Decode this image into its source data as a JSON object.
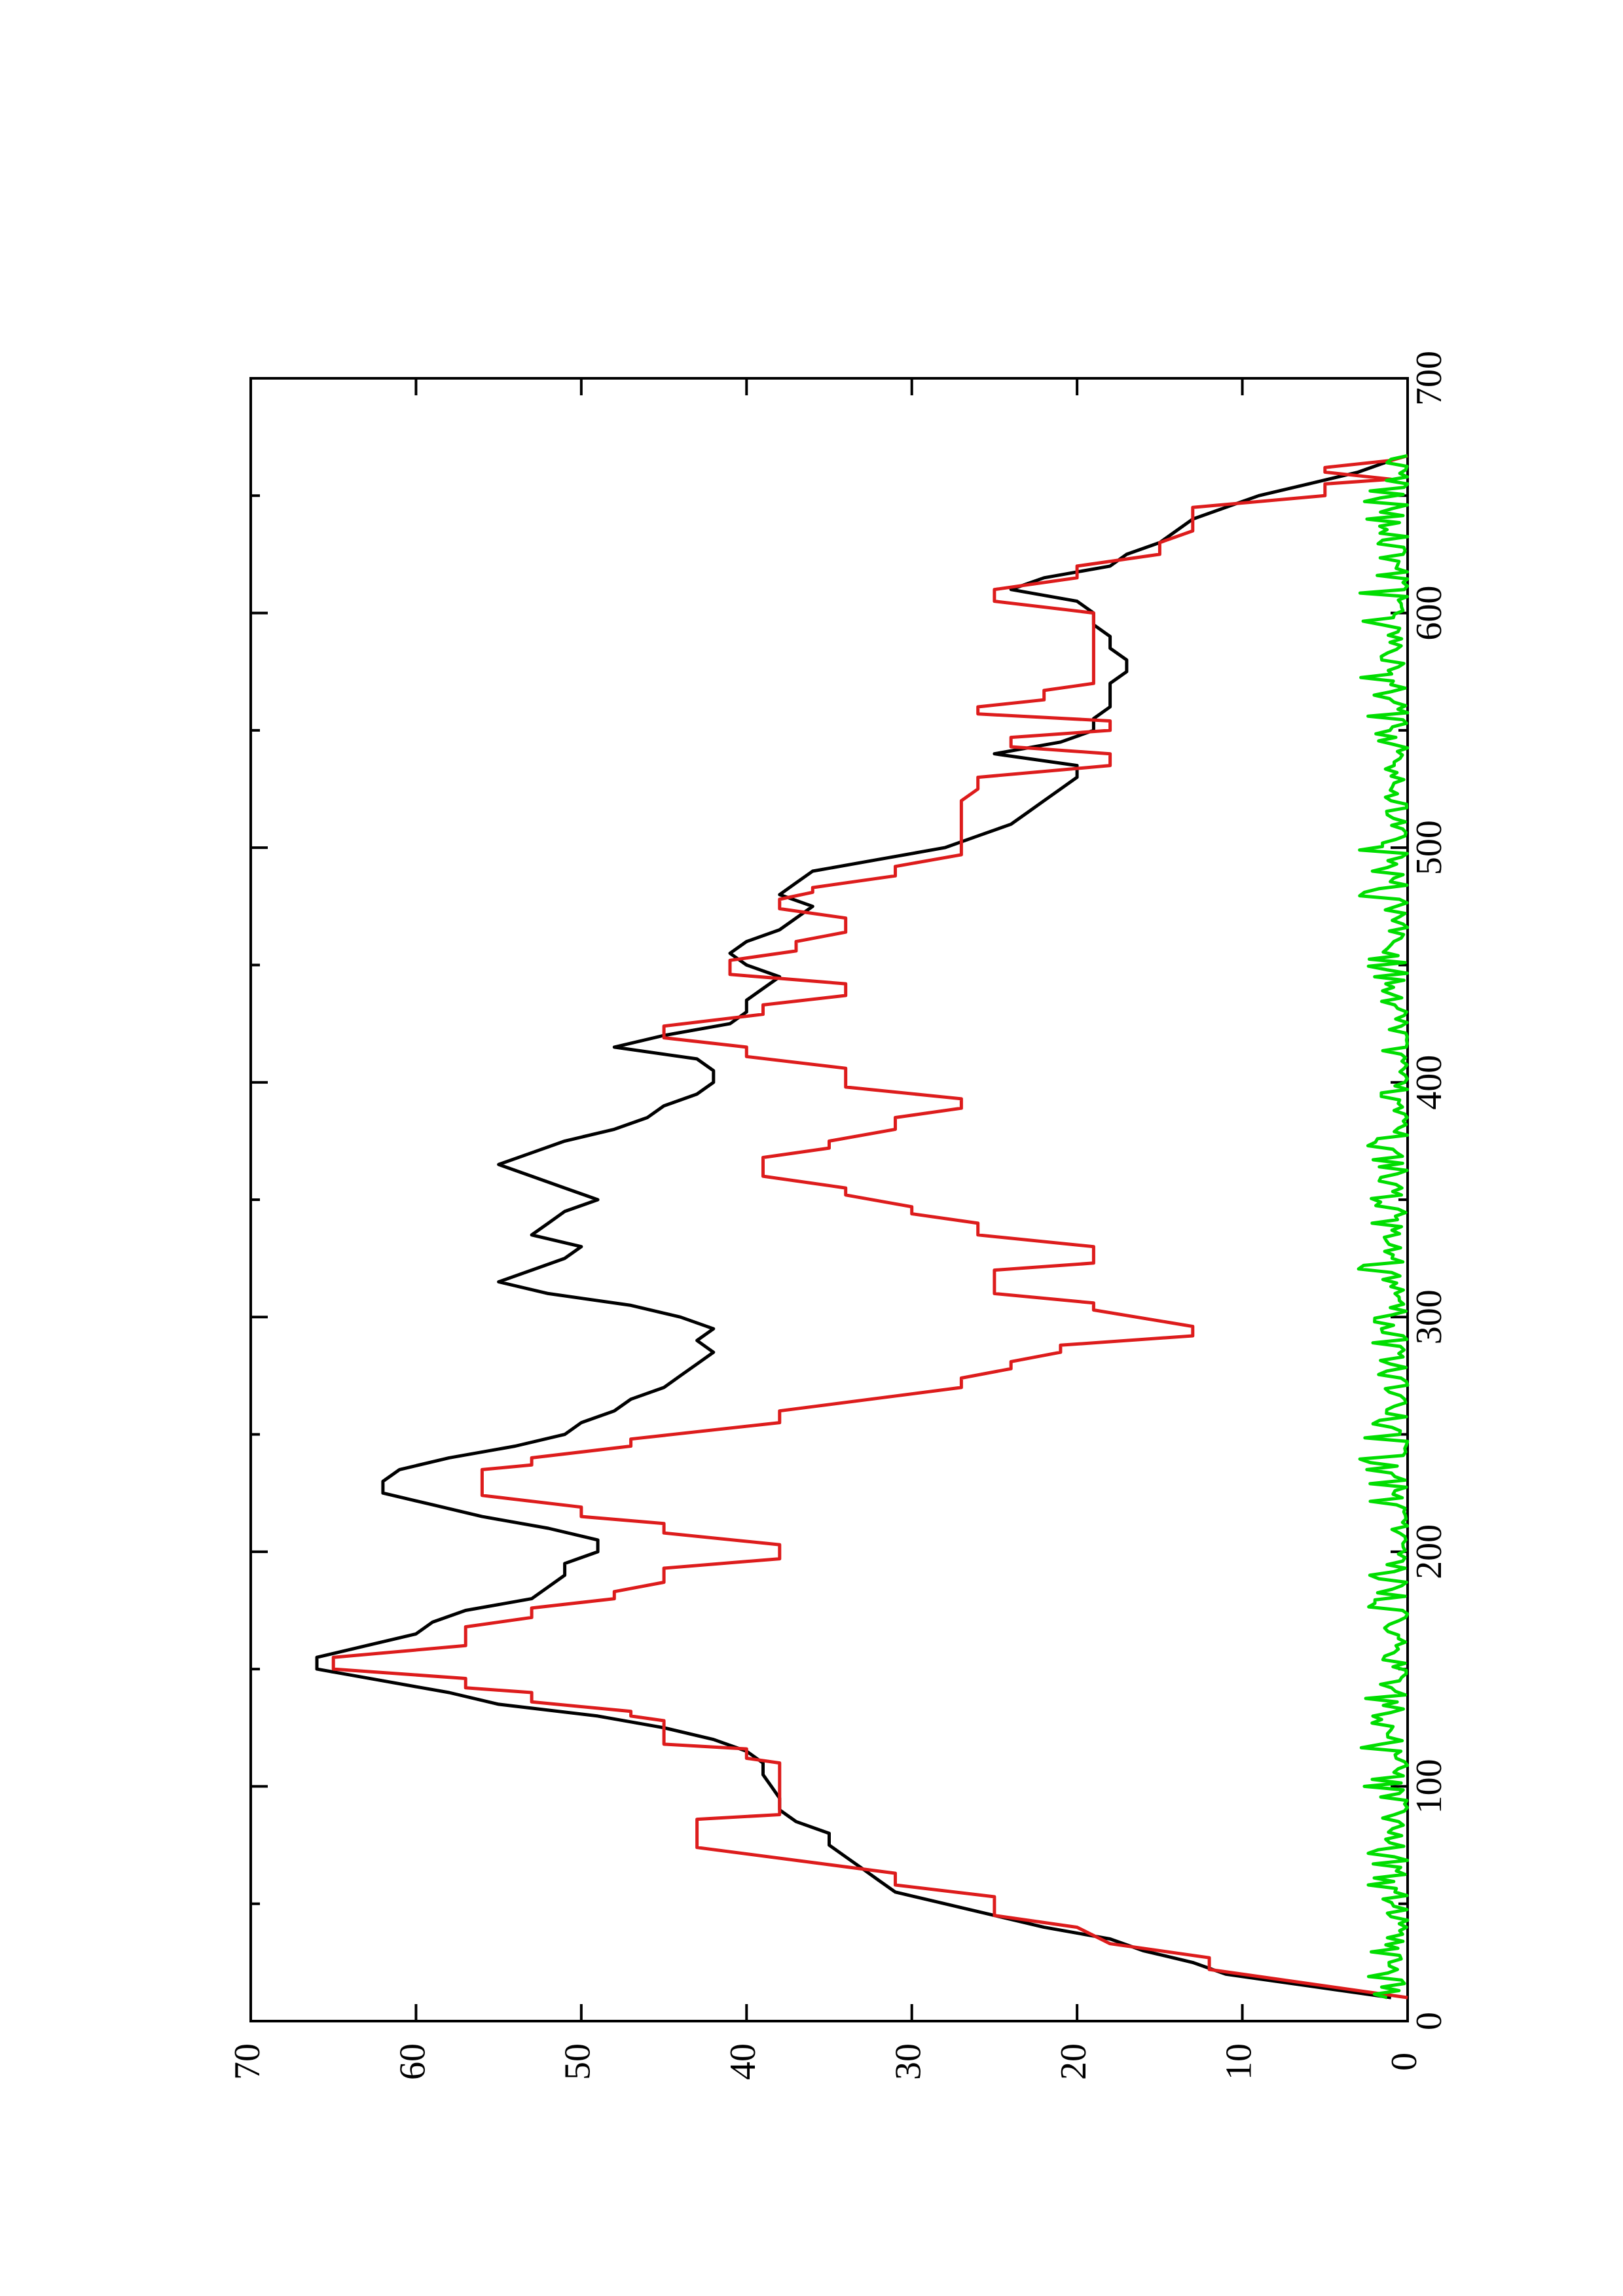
{
  "chart_data": {
    "type": "line",
    "orientation": "rotated-90-ccw",
    "title": "",
    "xlabel": "",
    "ylabel": "",
    "xlim": [
      0,
      700
    ],
    "ylim": [
      0,
      70
    ],
    "x_major_ticks": [
      0,
      100,
      200,
      300,
      400,
      500,
      600,
      700
    ],
    "x_minor_ticks": [
      50,
      150,
      250,
      350,
      450,
      550,
      650
    ],
    "y_major_ticks": [
      0,
      10,
      20,
      30,
      40,
      50,
      60,
      70
    ],
    "x_tick_labels": [
      "0",
      "100",
      "200",
      "300",
      "400",
      "500",
      "600",
      "700"
    ],
    "y_tick_labels": [
      "0",
      "10",
      "20",
      "30",
      "40",
      "50",
      "60",
      "70"
    ],
    "grid": false,
    "legend": "none",
    "series": [
      {
        "color": "#000000",
        "style": "smooth",
        "points": [
          [
            10,
            1
          ],
          [
            15,
            6
          ],
          [
            20,
            11
          ],
          [
            25,
            13
          ],
          [
            30,
            16
          ],
          [
            35,
            18
          ],
          [
            40,
            22
          ],
          [
            45,
            25
          ],
          [
            50,
            28
          ],
          [
            55,
            31
          ],
          [
            60,
            32
          ],
          [
            65,
            33
          ],
          [
            70,
            34
          ],
          [
            75,
            35
          ],
          [
            80,
            35
          ],
          [
            85,
            37
          ],
          [
            90,
            38
          ],
          [
            95,
            38
          ],
          [
            100,
            38.5
          ],
          [
            105,
            39
          ],
          [
            110,
            39
          ],
          [
            115,
            40
          ],
          [
            120,
            42
          ],
          [
            125,
            45
          ],
          [
            130,
            49
          ],
          [
            135,
            55
          ],
          [
            140,
            58
          ],
          [
            145,
            62
          ],
          [
            150,
            66
          ],
          [
            155,
            66
          ],
          [
            160,
            63
          ],
          [
            165,
            60
          ],
          [
            170,
            59
          ],
          [
            175,
            57
          ],
          [
            180,
            53
          ],
          [
            185,
            52
          ],
          [
            190,
            51
          ],
          [
            195,
            51
          ],
          [
            200,
            49
          ],
          [
            205,
            49
          ],
          [
            210,
            52
          ],
          [
            215,
            56
          ],
          [
            220,
            59
          ],
          [
            225,
            62
          ],
          [
            230,
            62
          ],
          [
            235,
            61
          ],
          [
            240,
            58
          ],
          [
            245,
            54
          ],
          [
            250,
            51
          ],
          [
            255,
            50
          ],
          [
            260,
            48
          ],
          [
            265,
            47
          ],
          [
            270,
            45
          ],
          [
            275,
            44
          ],
          [
            280,
            43
          ],
          [
            285,
            42
          ],
          [
            290,
            43
          ],
          [
            295,
            42
          ],
          [
            300,
            44
          ],
          [
            305,
            47
          ],
          [
            310,
            52
          ],
          [
            315,
            55
          ],
          [
            320,
            53
          ],
          [
            325,
            51
          ],
          [
            330,
            50
          ],
          [
            335,
            53
          ],
          [
            340,
            52
          ],
          [
            345,
            51
          ],
          [
            350,
            49
          ],
          [
            355,
            51
          ],
          [
            360,
            53
          ],
          [
            365,
            55
          ],
          [
            370,
            53
          ],
          [
            375,
            51
          ],
          [
            380,
            48
          ],
          [
            385,
            46
          ],
          [
            390,
            45
          ],
          [
            395,
            43
          ],
          [
            400,
            42
          ],
          [
            405,
            42
          ],
          [
            410,
            43
          ],
          [
            415,
            48
          ],
          [
            420,
            45
          ],
          [
            425,
            41
          ],
          [
            430,
            40
          ],
          [
            435,
            40
          ],
          [
            440,
            39
          ],
          [
            445,
            38
          ],
          [
            450,
            40
          ],
          [
            455,
            41
          ],
          [
            460,
            40
          ],
          [
            465,
            38
          ],
          [
            470,
            37
          ],
          [
            475,
            36
          ],
          [
            480,
            38
          ],
          [
            485,
            37
          ],
          [
            490,
            36
          ],
          [
            495,
            32
          ],
          [
            500,
            28
          ],
          [
            505,
            26
          ],
          [
            510,
            24
          ],
          [
            515,
            23
          ],
          [
            520,
            22
          ],
          [
            525,
            21
          ],
          [
            530,
            20
          ],
          [
            535,
            20
          ],
          [
            540,
            25
          ],
          [
            545,
            21
          ],
          [
            550,
            19
          ],
          [
            555,
            19
          ],
          [
            560,
            18
          ],
          [
            565,
            18
          ],
          [
            570,
            18
          ],
          [
            575,
            17
          ],
          [
            580,
            17
          ],
          [
            585,
            18
          ],
          [
            590,
            18
          ],
          [
            595,
            19
          ],
          [
            600,
            19
          ],
          [
            605,
            20
          ],
          [
            610,
            24
          ],
          [
            615,
            22
          ],
          [
            620,
            18
          ],
          [
            625,
            17
          ],
          [
            630,
            15
          ],
          [
            635,
            14
          ],
          [
            640,
            13
          ],
          [
            645,
            11
          ],
          [
            650,
            9
          ],
          [
            655,
            6
          ],
          [
            660,
            3
          ],
          [
            665,
            1
          ]
        ]
      },
      {
        "color": "#dd1c1c",
        "style": "step",
        "points": [
          [
            10,
            0
          ],
          [
            22,
            12
          ],
          [
            27,
            12
          ],
          [
            33,
            18
          ],
          [
            40,
            20
          ],
          [
            45,
            25
          ],
          [
            53,
            25
          ],
          [
            58,
            31
          ],
          [
            63,
            31
          ],
          [
            74,
            43
          ],
          [
            86,
            43
          ],
          [
            88,
            38
          ],
          [
            110,
            38
          ],
          [
            112,
            40
          ],
          [
            116,
            40
          ],
          [
            118,
            45
          ],
          [
            128,
            45
          ],
          [
            130,
            47
          ],
          [
            132,
            47
          ],
          [
            136,
            53
          ],
          [
            140,
            53
          ],
          [
            142,
            57
          ],
          [
            146,
            57
          ],
          [
            150,
            65
          ],
          [
            155,
            65
          ],
          [
            160,
            57
          ],
          [
            168,
            57
          ],
          [
            172,
            53
          ],
          [
            176,
            53
          ],
          [
            180,
            48
          ],
          [
            183,
            48
          ],
          [
            187,
            45
          ],
          [
            193,
            45
          ],
          [
            197,
            38
          ],
          [
            203,
            38
          ],
          [
            208,
            45
          ],
          [
            212,
            45
          ],
          [
            215,
            50
          ],
          [
            219,
            50
          ],
          [
            224,
            56
          ],
          [
            235,
            56
          ],
          [
            237,
            53
          ],
          [
            240,
            53
          ],
          [
            245,
            47
          ],
          [
            248,
            47
          ],
          [
            255,
            38
          ],
          [
            257,
            38
          ],
          [
            260,
            38
          ],
          [
            270,
            27
          ],
          [
            274,
            27
          ],
          [
            278,
            24
          ],
          [
            281,
            24
          ],
          [
            285,
            21
          ],
          [
            288,
            21
          ],
          [
            292,
            13
          ],
          [
            296,
            13
          ],
          [
            303,
            19
          ],
          [
            306,
            19
          ],
          [
            310,
            25
          ],
          [
            320,
            25
          ],
          [
            323,
            19
          ],
          [
            330,
            19
          ],
          [
            335,
            26
          ],
          [
            340,
            26
          ],
          [
            344,
            30
          ],
          [
            347,
            30
          ],
          [
            352,
            34
          ],
          [
            355,
            34
          ],
          [
            360,
            39
          ],
          [
            368,
            39
          ],
          [
            372,
            35
          ],
          [
            375,
            35
          ],
          [
            380,
            31
          ],
          [
            385,
            31
          ],
          [
            389,
            27
          ],
          [
            393,
            27
          ],
          [
            398,
            34
          ],
          [
            406,
            34
          ],
          [
            411,
            40
          ],
          [
            415,
            40
          ],
          [
            419,
            45
          ],
          [
            424,
            45
          ],
          [
            429,
            39
          ],
          [
            433,
            39
          ],
          [
            437,
            34
          ],
          [
            442,
            34
          ],
          [
            446,
            41
          ],
          [
            452,
            41
          ],
          [
            456,
            37
          ],
          [
            460,
            37
          ],
          [
            464,
            34
          ],
          [
            470,
            34
          ],
          [
            474,
            38
          ],
          [
            478,
            38
          ],
          [
            481,
            36
          ],
          [
            483,
            36
          ],
          [
            488,
            31
          ],
          [
            492,
            31
          ],
          [
            497,
            27
          ],
          [
            520,
            27
          ],
          [
            525,
            26
          ],
          [
            530,
            26
          ],
          [
            535,
            18
          ],
          [
            540,
            18
          ],
          [
            543,
            24
          ],
          [
            547,
            24
          ],
          [
            550,
            18
          ],
          [
            554,
            18
          ],
          [
            557,
            26
          ],
          [
            560,
            26
          ],
          [
            563,
            22
          ],
          [
            567,
            22
          ],
          [
            570,
            19
          ],
          [
            600,
            19
          ],
          [
            605,
            25
          ],
          [
            610,
            25
          ],
          [
            615,
            20
          ],
          [
            620,
            20
          ],
          [
            625,
            15
          ],
          [
            630,
            15
          ],
          [
            635,
            13
          ],
          [
            645,
            13
          ],
          [
            650,
            5
          ],
          [
            655,
            5
          ],
          [
            657,
            1
          ],
          [
            660,
            5
          ],
          [
            662,
            5
          ],
          [
            665,
            1
          ],
          [
            667,
            0
          ]
        ]
      },
      {
        "color": "#00dd00",
        "style": "noise",
        "baseline": 0,
        "amplitude_range": [
          0,
          3
        ],
        "x_range": [
          10,
          667
        ]
      }
    ]
  }
}
